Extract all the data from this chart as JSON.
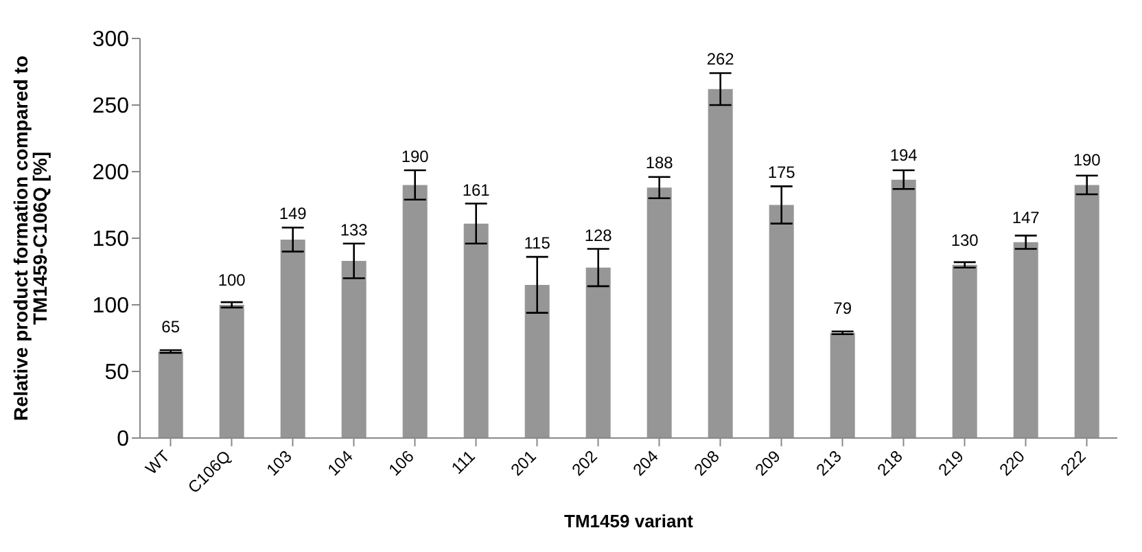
{
  "chart_data": {
    "type": "bar",
    "xlabel": "TM1459 variant",
    "ylabel": "Relative product formation compared to TM1459-C106Q [%]",
    "categories": [
      "WT",
      "C106Q",
      "103",
      "104",
      "106",
      "111",
      "201",
      "202",
      "204",
      "208",
      "209",
      "213",
      "218",
      "219",
      "220",
      "222"
    ],
    "values": [
      65,
      100,
      149,
      133,
      190,
      161,
      115,
      128,
      188,
      262,
      175,
      79,
      194,
      130,
      147,
      190
    ],
    "errors": [
      1,
      2,
      9,
      13,
      11,
      15,
      21,
      14,
      8,
      12,
      14,
      1,
      7,
      2,
      5,
      7
    ],
    "color": "#969696",
    "ylim": [
      0,
      300
    ],
    "yticks": [
      0,
      50,
      100,
      150,
      200,
      250,
      300
    ],
    "grid": false,
    "data_labels": true
  }
}
